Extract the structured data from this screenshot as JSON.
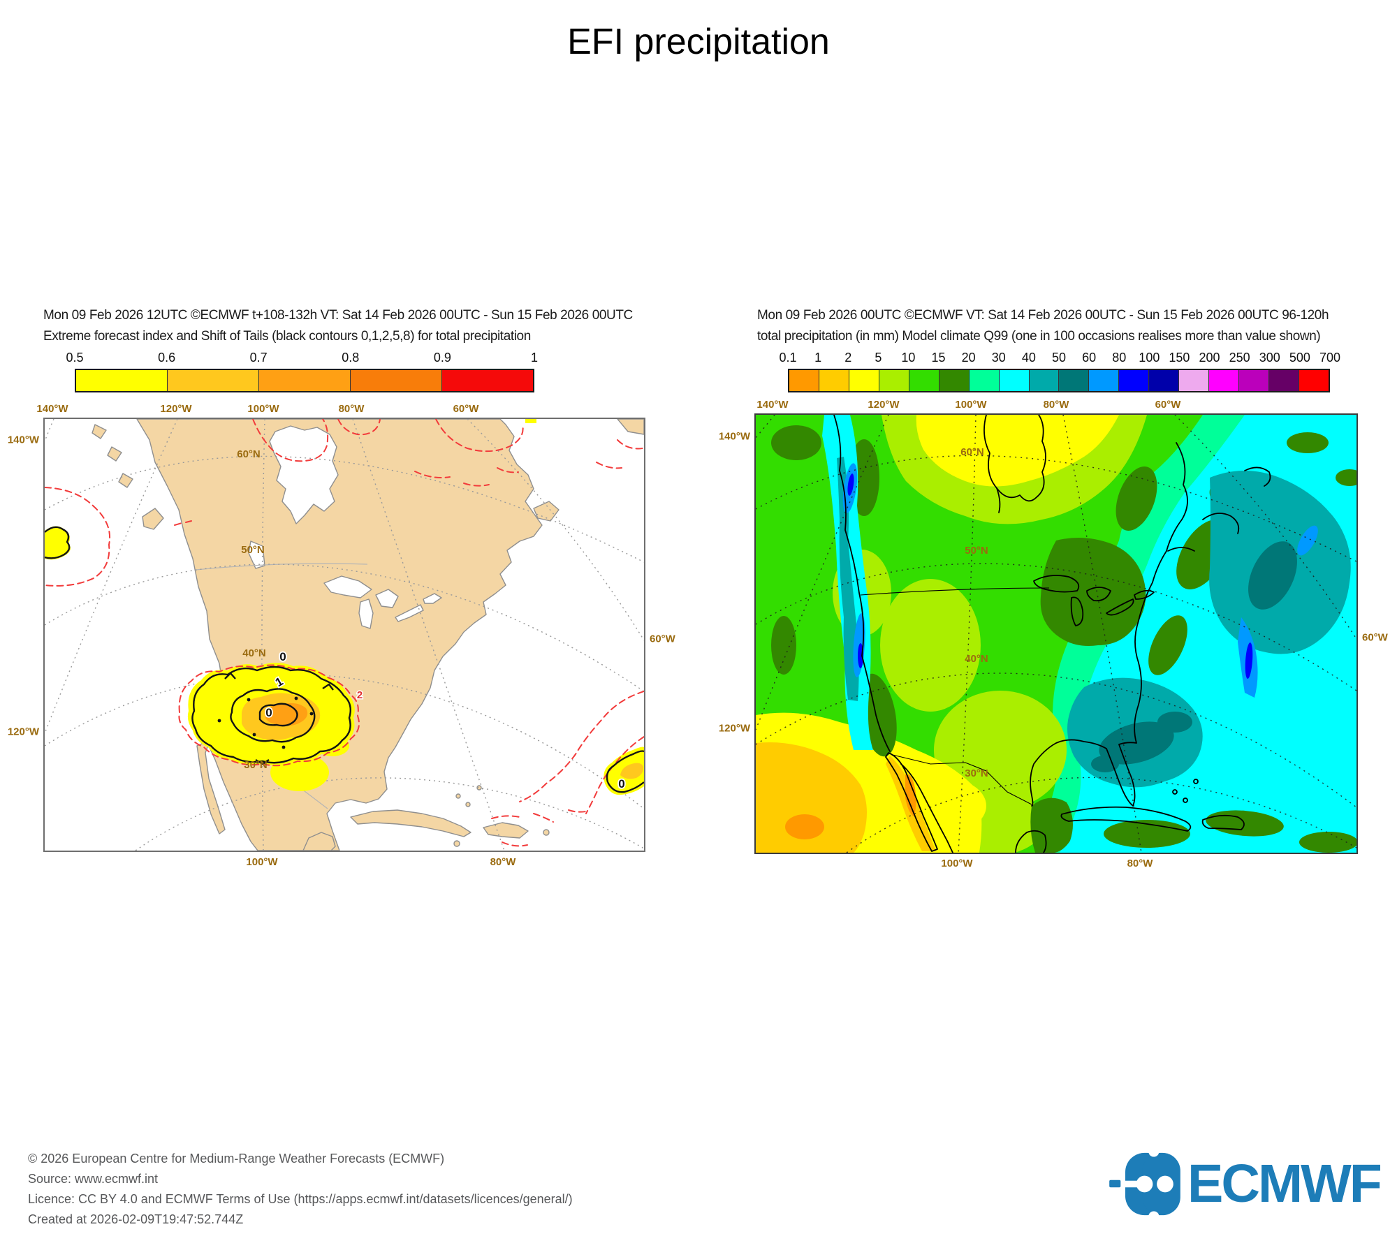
{
  "page": {
    "title": "EFI precipitation"
  },
  "left_panel": {
    "header_line1": "Mon 09 Feb 2026 12UTC ©ECMWF t+108-132h  VT: Sat 14 Feb 2026 00UTC - Sun 15 Feb 2026 00UTC",
    "header_line2": "Extreme forecast index and Shift of Tails (black contours 0,1,2,5,8) for total precipitation",
    "colorbar": {
      "tick_labels": [
        "0.5",
        "0.6",
        "0.7",
        "0.8",
        "0.9",
        "1"
      ],
      "segment_colors": [
        "#FFFF00",
        "#FFC81E",
        "#FFA014",
        "#F87D0A",
        "#F50A0A"
      ]
    },
    "map": {
      "top_labels": [
        "140°W",
        "120°W",
        "100°W",
        "80°W",
        "60°W"
      ],
      "bottom_labels": [
        "100°W",
        "80°W"
      ],
      "left_labels": [
        "140°W",
        "120°W"
      ],
      "right_labels": [
        "60°W"
      ],
      "lat_labels": [
        "60°N",
        "50°N",
        "40°N",
        "30°N"
      ],
      "contour_labels": {
        "sot0": "0",
        "sot1": "1",
        "red2": "2"
      },
      "land_color": "#F4D6A4"
    }
  },
  "right_panel": {
    "header_line1": "Mon 09 Feb 2026 00UTC ©ECMWF VT: Sat 14 Feb 2026 00UTC - Sun 15 Feb 2026 00UTC   96-120h",
    "header_line2": "total precipitation (in mm)  Model climate Q99 (one in 100 occasions realises more than value shown)",
    "colorbar": {
      "tick_labels": [
        "0.1",
        "1",
        "2",
        "5",
        "10",
        "15",
        "20",
        "30",
        "40",
        "50",
        "60",
        "80",
        "100",
        "150",
        "200",
        "250",
        "300",
        "500",
        "700"
      ],
      "segment_colors": [
        "#FF9900",
        "#FFCC00",
        "#FFFF00",
        "#AAEE00",
        "#33DD00",
        "#338800",
        "#00FF99",
        "#00FFFF",
        "#00AAAA",
        "#007777",
        "#0099FF",
        "#0000FF",
        "#0000AA",
        "#EEAAEE",
        "#FF00FF",
        "#BB00BB",
        "#660066",
        "#FF0000"
      ]
    },
    "map": {
      "top_labels": [
        "140°W",
        "120°W",
        "100°W",
        "80°W",
        "60°W"
      ],
      "bottom_labels": [
        "100°W",
        "80°W"
      ],
      "left_labels": [
        "140°W",
        "120°W"
      ],
      "right_labels": [
        "60°W"
      ],
      "lat_labels": [
        "60°N",
        "50°N",
        "40°N",
        "30°N"
      ]
    }
  },
  "footer": {
    "line1": "© 2026 European Centre for Medium-Range Weather Forecasts (ECMWF)",
    "line2": "Source: www.ecmwf.int",
    "line3": "Licence: CC BY 4.0 and ECMWF Terms of Use (https://apps.ecmwf.int/datasets/licences/general/)",
    "line4": "Created at 2026-02-09T19:47:52.744Z"
  },
  "logo": {
    "wordmark": "ECMWF",
    "color": "#1d7db8"
  },
  "chart_data": [
    {
      "type": "heatmap",
      "panel": "left",
      "title": "Extreme forecast index and Shift of Tails (black contours 0,1,2,5,8) for total precipitation",
      "base_time": "Mon 09 Feb 2026 12UTC",
      "lead_time": "t+108-132h",
      "valid_time": "Sat 14 Feb 2026 00UTC - Sun 15 Feb 2026 00UTC",
      "region": "North America",
      "legend_bins": [
        0.5,
        0.6,
        0.7,
        0.8,
        0.9,
        1
      ],
      "legend_colors": [
        "#FFFF00",
        "#FFC81E",
        "#FFA014",
        "#F87D0A",
        "#F50A0A"
      ],
      "sot_contour_levels": [
        0,
        1,
        2,
        5,
        8
      ],
      "depicted_features": [
        "Large EFI area 0.5-0.8 over the southern Great Plains (Texas/Oklahoma) with black SOT contours 0 and 1 and red dashed outline",
        "Small EFI >0.5 patch at the west map edge over the NE Pacific near 50N/140W",
        "EFI 0.5-0.7 band in the western Atlantic northeast of Hispaniola",
        "Red dashed (negative EFI) contours near Hudson Bay, the NE Pacific, Labrador Sea and the Caribbean"
      ],
      "graticule_longitudes": [
        "140°W",
        "120°W",
        "100°W",
        "80°W",
        "60°W"
      ],
      "graticule_latitudes": [
        "60°N",
        "50°N",
        "40°N",
        "30°N"
      ]
    },
    {
      "type": "heatmap",
      "panel": "right",
      "title": "total precipitation (in mm)  Model climate Q99 (one in 100 occasions realises more than value shown)",
      "base_time": "Mon 09 Feb 2026 00UTC",
      "lead_time": "96-120h",
      "valid_time": "Sat 14 Feb 2026 00UTC - Sun 15 Feb 2026 00UTC",
      "region": "North America",
      "units": "mm",
      "legend_bins": [
        0.1,
        1,
        2,
        5,
        10,
        15,
        20,
        30,
        40,
        50,
        60,
        80,
        100,
        150,
        200,
        250,
        300,
        500,
        700
      ],
      "legend_colors": [
        "#FF9900",
        "#FFCC00",
        "#FFFF00",
        "#AAEE00",
        "#33DD00",
        "#338800",
        "#00FF99",
        "#00FFFF",
        "#00AAAA",
        "#007777",
        "#0099FF",
        "#0000FF",
        "#0000AA",
        "#EEAAEE",
        "#FF00FF",
        "#BB00BB",
        "#660066",
        "#FF0000"
      ],
      "depicted_features": [
        "Lowest climatological Q99 values (0.1-5 mm, orange/yellow) over the Southwest US, Baja California and northern Mexico",
        "5-15 mm (greens) over the interior West, Plains and central Canada",
        "20-60 mm (cyan/teal) over the Southeast US, Gulf of Mexico and western Atlantic",
        "60-150 mm streaks (blue) along the Pacific Northwest coastal ranges and the southern Appalachians",
        "15-30 mm dark green patches over the upper Midwest, Atlantic Canada and the Caribbean islands"
      ],
      "graticule_longitudes": [
        "140°W",
        "120°W",
        "100°W",
        "80°W",
        "60°W"
      ],
      "graticule_latitudes": [
        "60°N",
        "50°N",
        "40°N",
        "30°N"
      ]
    }
  ]
}
